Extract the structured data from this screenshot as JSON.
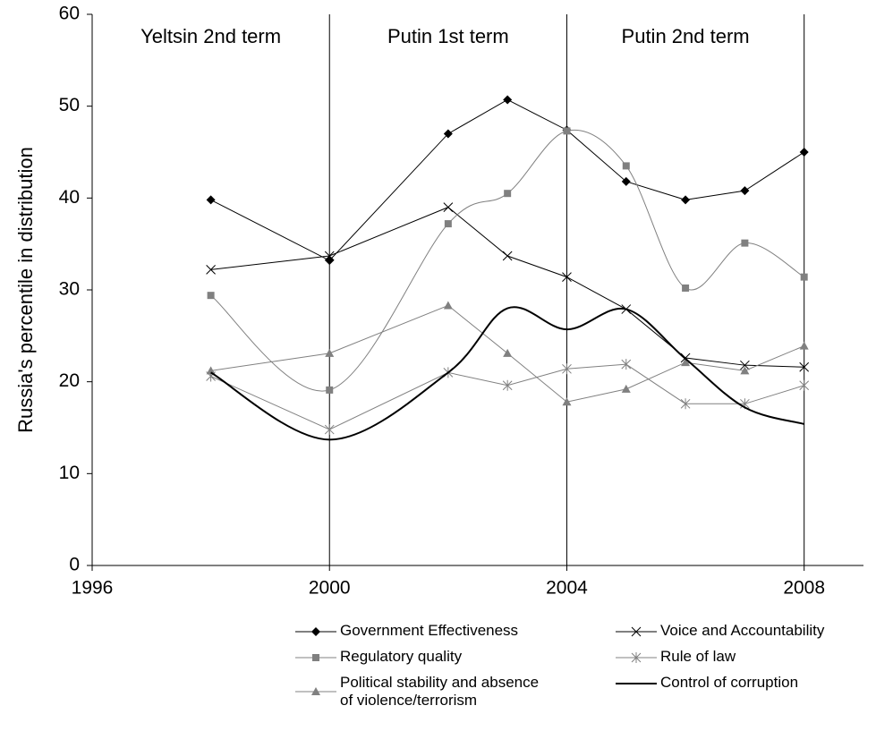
{
  "chart_data": {
    "type": "line",
    "ylabel": "Russia's percentile in distribution",
    "x": [
      1998,
      2000,
      2002,
      2003,
      2004,
      2005,
      2006,
      2007,
      2008
    ],
    "xlim": [
      1996,
      2009
    ],
    "xticks": [
      1996,
      2000,
      2004,
      2008
    ],
    "ylim": [
      0,
      60
    ],
    "yticks": [
      0,
      10,
      20,
      30,
      40,
      50,
      60
    ],
    "dividers": [
      2000,
      2004,
      2008
    ],
    "annotations": [
      "Yeltsin 2nd term",
      "Putin 1st term",
      "Putin 2nd term"
    ],
    "series": [
      {
        "name": "Government Effectiveness",
        "color": "#000000",
        "marker": "diamond",
        "smooth": false,
        "width": 1,
        "values": [
          39.8,
          33.2,
          47.0,
          50.7,
          47.4,
          41.8,
          39.8,
          40.8,
          45.0
        ]
      },
      {
        "name": "Voice and Accountability",
        "color": "#000000",
        "marker": "x",
        "smooth": false,
        "width": 1,
        "values": [
          32.2,
          33.7,
          39.0,
          33.7,
          31.4,
          27.9,
          22.6,
          21.8,
          21.6
        ]
      },
      {
        "name": "Regulatory quality",
        "color": "#808080",
        "marker": "square",
        "smooth": true,
        "width": 1,
        "values": [
          29.4,
          19.1,
          37.2,
          40.5,
          47.3,
          43.5,
          30.2,
          35.1,
          31.4
        ]
      },
      {
        "name": "Rule of law",
        "color": "#808080",
        "marker": "star",
        "smooth": false,
        "width": 1,
        "values": [
          20.6,
          14.8,
          21.0,
          19.6,
          21.4,
          21.9,
          17.6,
          17.6,
          19.6
        ]
      },
      {
        "name": "Political stability and absence of violence/terrorism",
        "color": "#808080",
        "marker": "triangle",
        "smooth": false,
        "width": 1,
        "values": [
          21.2,
          23.1,
          28.3,
          23.1,
          17.8,
          19.2,
          22.1,
          21.2,
          23.9
        ]
      },
      {
        "name": "Control of corruption",
        "color": "#000000",
        "marker": "none",
        "smooth": true,
        "width": 2,
        "values": [
          21.0,
          13.7,
          21.0,
          28.0,
          25.7,
          27.9,
          22.5,
          17.2,
          15.4
        ]
      }
    ]
  }
}
